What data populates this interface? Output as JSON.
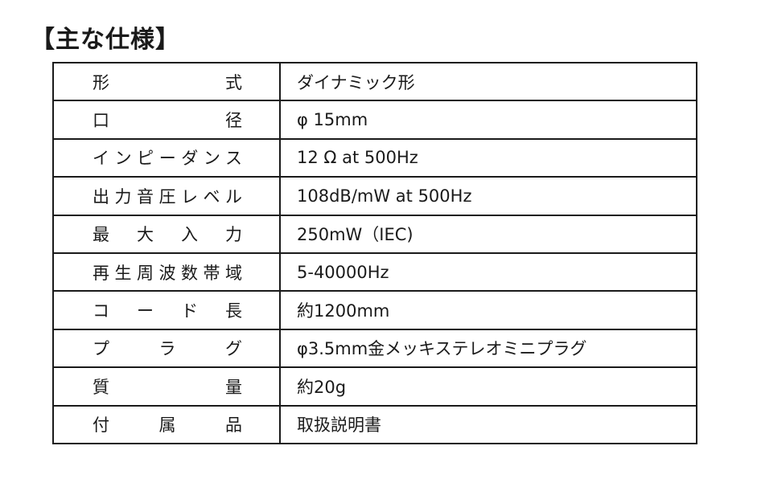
{
  "title": "【主な仕様】",
  "specs": [
    {
      "label": "形式",
      "value": "ダイナミック形"
    },
    {
      "label": "口径",
      "value": "φ 15mm"
    },
    {
      "label": "インピーダンス",
      "value": "12 Ω  at 500Hz"
    },
    {
      "label": "出力音圧レベル",
      "value": "108dB/mW  at  500Hz"
    },
    {
      "label": "最大入力",
      "value": "250mW（IEC)"
    },
    {
      "label": "再生周波数帯域",
      "value": "5-40000Hz"
    },
    {
      "label": "コード長",
      "value": "約1200mm"
    },
    {
      "label": "プラグ",
      "value": "φ3.5mm金メッキステレオミニプラグ"
    },
    {
      "label": "質量",
      "value": "約20g"
    },
    {
      "label": "付属品",
      "value": "取扱説明書"
    }
  ]
}
